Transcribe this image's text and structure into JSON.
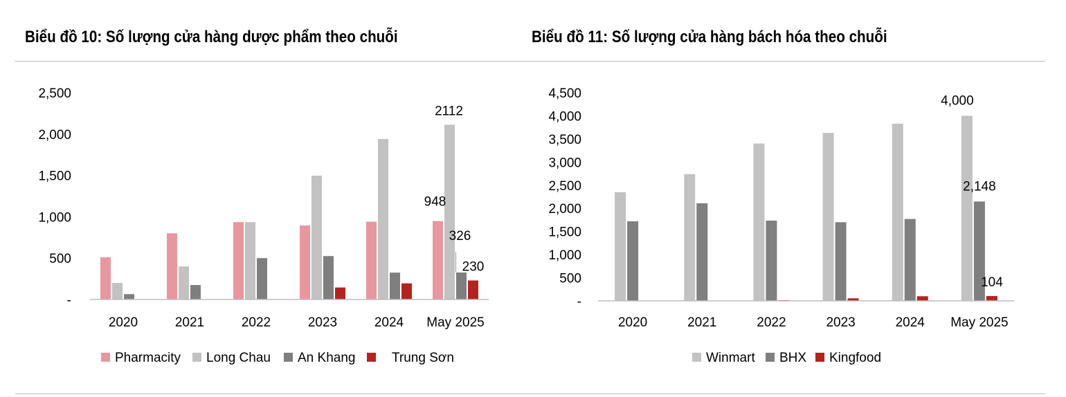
{
  "colors": {
    "pharmacity": "#e8979f",
    "long_chau": "#c2c2c2",
    "an_khang": "#7f7f7f",
    "trung_son": "#b4231f",
    "winmart": "#c2c2c2",
    "bhx": "#7f7f7f",
    "kingfood": "#b4231f",
    "axis": "#bdbdbd"
  },
  "chart_data": [
    {
      "type": "bar",
      "title": "Biểu đồ 10: Số lượng cửa hàng dược phẩm theo chuỗi",
      "categories": [
        "2020",
        "2021",
        "2022",
        "2023",
        "2024",
        "May 2025"
      ],
      "ylim": [
        0,
        2500
      ],
      "yticks": [
        0,
        500,
        1000,
        1500,
        2000,
        2500
      ],
      "ytick_labels": [
        "-",
        "500",
        "1,000",
        "1,500",
        "2,000",
        "2,500"
      ],
      "grid": false,
      "legend": "bottom",
      "series": [
        {
          "name": "Pharmacity",
          "color": "#e8979f",
          "values": [
            510,
            800,
            935,
            895,
            940,
            948
          ]
        },
        {
          "name": "Long Chau",
          "color": "#c2c2c2",
          "values": [
            200,
            400,
            935,
            1497,
            1940,
            2112
          ]
        },
        {
          "name": "An Khang",
          "color": "#7f7f7f",
          "values": [
            65,
            175,
            500,
            525,
            325,
            326
          ]
        },
        {
          "name": "Trung Sơn",
          "color": "#b4231f",
          "values": [
            0,
            0,
            0,
            145,
            195,
            230
          ]
        }
      ],
      "data_labels": [
        {
          "series": 0,
          "index": 5,
          "text": "948"
        },
        {
          "series": 1,
          "index": 5,
          "text": "2112"
        },
        {
          "series": 2,
          "index": 5,
          "text": "326"
        },
        {
          "series": 3,
          "index": 5,
          "text": "230"
        }
      ]
    },
    {
      "type": "bar",
      "title": "Biểu đồ 11: Số lượng cửa hàng bách hóa theo chuỗi",
      "categories": [
        "2020",
        "2021",
        "2022",
        "2023",
        "2024",
        "May 2025"
      ],
      "ylim": [
        0,
        4500
      ],
      "yticks": [
        0,
        500,
        1000,
        1500,
        2000,
        2500,
        3000,
        3500,
        4000,
        4500
      ],
      "ytick_labels": [
        "-",
        "500",
        "1,000",
        "1,500",
        "2,000",
        "2,500",
        "3,000",
        "3,500",
        "4,000",
        "4,500"
      ],
      "grid": false,
      "legend": "bottom",
      "series": [
        {
          "name": "Winmart",
          "color": "#c2c2c2",
          "values": [
            2350,
            2740,
            3400,
            3630,
            3830,
            4000
          ]
        },
        {
          "name": "BHX",
          "color": "#7f7f7f",
          "values": [
            1720,
            2110,
            1735,
            1700,
            1770,
            2148
          ]
        },
        {
          "name": "Kingfood",
          "color": "#b4231f",
          "values": [
            0,
            0,
            15,
            55,
            100,
            104
          ]
        }
      ],
      "data_labels": [
        {
          "series": 0,
          "index": 5,
          "text": "4,000"
        },
        {
          "series": 1,
          "index": 5,
          "text": "2,148"
        },
        {
          "series": 2,
          "index": 5,
          "text": "104"
        }
      ]
    }
  ]
}
